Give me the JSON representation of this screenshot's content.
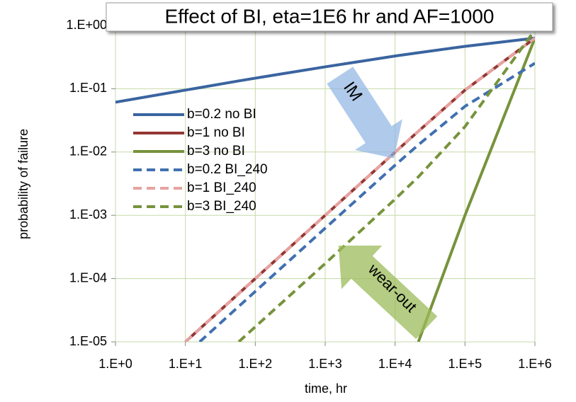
{
  "chart_data": {
    "type": "line",
    "title": "Effect of BI, eta=1E6 hr and AF=1000",
    "xlabel": "time, hr",
    "ylabel": "probability of failure",
    "xscale": "log",
    "yscale": "log",
    "grid": true,
    "legend": "upper left",
    "xlim": [
      1,
      1000000
    ],
    "ylim": [
      1e-05,
      1
    ],
    "xticks": [
      {
        "value": 1,
        "label": "1.E+0"
      },
      {
        "value": 10,
        "label": "1.E+1"
      },
      {
        "value": 100,
        "label": "1.E+2"
      },
      {
        "value": 1000,
        "label": "1.E+3"
      },
      {
        "value": 10000,
        "label": "1.E+4"
      },
      {
        "value": 100000,
        "label": "1.E+5"
      },
      {
        "value": 1000000,
        "label": "1.E+6"
      }
    ],
    "yticks": [
      {
        "value": 1e-05,
        "label": "1.E-05"
      },
      {
        "value": 0.0001,
        "label": "1.E-04"
      },
      {
        "value": 0.001,
        "label": "1.E-03"
      },
      {
        "value": 0.01,
        "label": "1.E-02"
      },
      {
        "value": 0.1,
        "label": "1.E-01"
      },
      {
        "value": 1,
        "label": "1.E+00"
      }
    ],
    "x": [
      1,
      10,
      16,
      58,
      100,
      1000,
      10000,
      21544,
      100000,
      1000000
    ],
    "series": [
      {
        "name": "b=0.2 no BI",
        "color": "#3a64a0",
        "dashed": false,
        "values": [
          0.0612,
          0.0952,
          0.104,
          0.133,
          0.147,
          0.222,
          0.329,
          0.371,
          0.468,
          0.632
        ]
      },
      {
        "name": "b=1 no BI",
        "color": "#953735",
        "dashed": false,
        "values": [
          null,
          1e-05,
          1.6e-05,
          5.8e-05,
          0.0001,
          0.001,
          0.00995,
          0.0213,
          0.0952,
          0.632
        ]
      },
      {
        "name": "b=3 no BI",
        "color": "#77933c",
        "dashed": false,
        "values": [
          null,
          null,
          null,
          null,
          null,
          null,
          null,
          1e-05,
          0.001,
          0.632
        ]
      },
      {
        "name": "b=0.2 BI_240",
        "color": "#4170b0",
        "dashed": true,
        "values": [
          null,
          null,
          1e-05,
          3.63e-05,
          6.26e-05,
          0.000626,
          0.0062,
          0.013,
          0.0528,
          0.253
        ]
      },
      {
        "name": "b=1 BI_240",
        "color": "#e6a3a1",
        "dashed": true,
        "values": [
          null,
          1e-05,
          1.6e-05,
          5.8e-05,
          0.0001,
          0.001,
          0.00995,
          0.0213,
          0.0952,
          0.632
        ]
      },
      {
        "name": "b=3 BI_240",
        "color": "#77933c",
        "dashed": true,
        "values": [
          null,
          null,
          null,
          1e-05,
          1.73e-05,
          0.000173,
          0.0018,
          0.00406,
          0.0252,
          0.849
        ]
      }
    ],
    "annotations": [
      "IM",
      "wear-out"
    ]
  }
}
